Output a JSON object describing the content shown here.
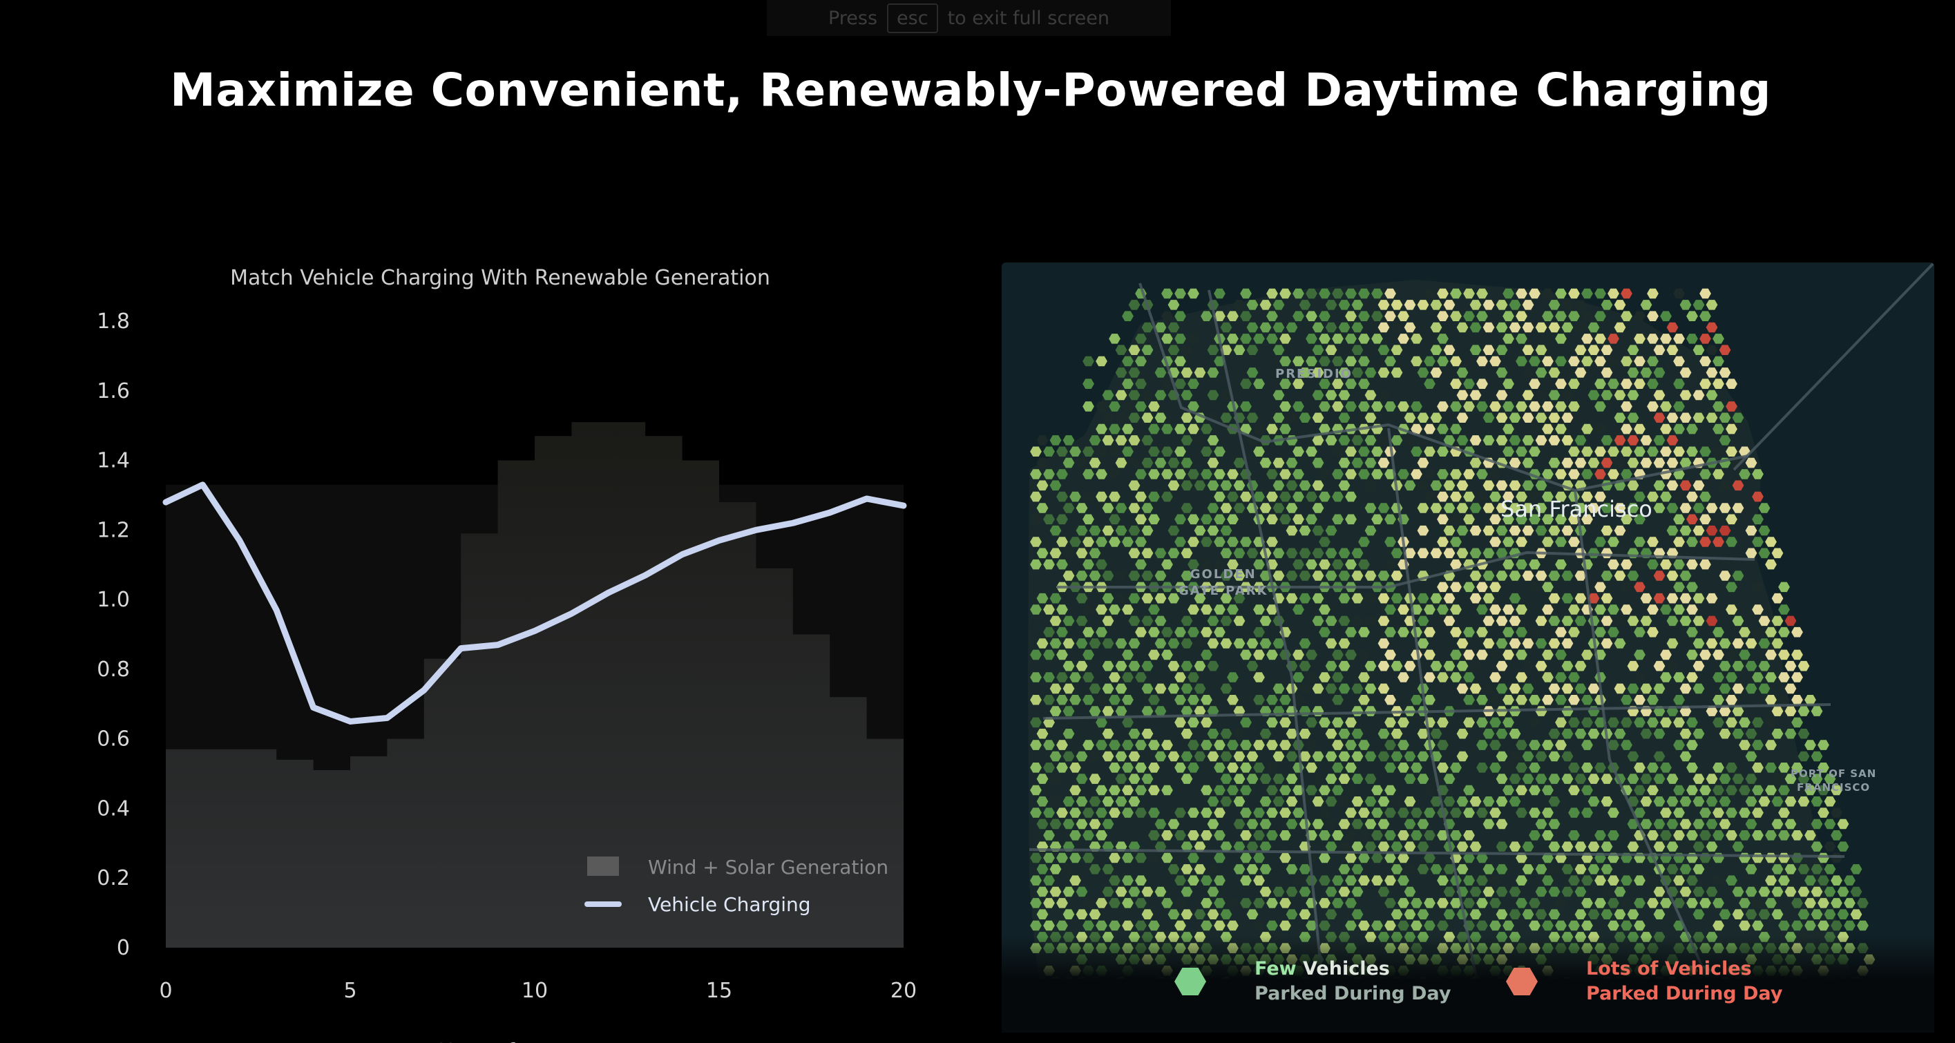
{
  "fullscreen_hint": {
    "press": "Press",
    "key": "esc",
    "suffix": "to exit full screen"
  },
  "slide": {
    "title": "Maximize Convenient, Renewably-Powered Daytime Charging"
  },
  "chart_data": {
    "type": "area",
    "title": "Match Vehicle Charging With Renewable Generation",
    "xlabel": "Hour of Day",
    "ylabel": "",
    "xlim": [
      0,
      20
    ],
    "ylim": [
      0,
      1.8
    ],
    "xticks": [
      0,
      5,
      10,
      15,
      20
    ],
    "yticks": [
      0,
      0.2,
      0.4,
      0.6,
      0.8,
      1.0,
      1.2,
      1.4,
      1.6,
      1.8
    ],
    "ytick_labels": [
      "0",
      "0.2",
      "0.4",
      "0.6",
      "0.8",
      "1.0",
      "1.2",
      "1.4",
      "1.6",
      "1.8"
    ],
    "legend_position": "bottom-right",
    "grid": false,
    "series": [
      {
        "name": "Wind + Solar Generation",
        "style": "step-area",
        "color": "#3a3a3a",
        "x": [
          0,
          1,
          2,
          3,
          4,
          5,
          6,
          7,
          8,
          9,
          10,
          11,
          12,
          13,
          14,
          15,
          16,
          17,
          18,
          19,
          20
        ],
        "values": [
          0.57,
          0.57,
          0.57,
          0.54,
          0.51,
          0.55,
          0.6,
          0.83,
          1.19,
          1.4,
          1.47,
          1.51,
          1.51,
          1.47,
          1.4,
          1.28,
          1.09,
          0.9,
          0.72,
          0.6,
          0.57
        ]
      },
      {
        "name": "Vehicle Charging",
        "style": "line",
        "color": "#c8d4f0",
        "x": [
          0,
          1,
          2,
          3,
          4,
          5,
          6,
          7,
          8,
          9,
          10,
          11,
          12,
          13,
          14,
          15,
          16,
          17,
          18,
          19,
          20
        ],
        "values": [
          1.28,
          1.33,
          1.17,
          0.97,
          0.69,
          0.65,
          0.66,
          0.74,
          0.86,
          0.87,
          0.91,
          0.96,
          1.02,
          1.07,
          1.13,
          1.17,
          1.2,
          1.22,
          1.25,
          1.29,
          1.27
        ]
      }
    ]
  },
  "map": {
    "city_label": "San Francisco",
    "areas": {
      "presidio": "PRESIDIO",
      "golden_gate_1": "GOLDEN",
      "golden_gate_2": "GATE PARK",
      "port_1": "PORT OF SAN",
      "port_2": "FRANCISCO"
    },
    "colors": {
      "few": "#7ecf8a",
      "mid": "#c9d87a",
      "lots": "#e57660",
      "dark": "#0f1a22"
    },
    "legend": {
      "few": {
        "strong": "Few",
        "rest": " Vehicles",
        "line2": "Parked During Day",
        "color": "#9ee6a6"
      },
      "lots": {
        "strong": "Lots",
        "rest": " of Vehicles",
        "line2": "Parked During Day",
        "color": "#ef6a5a"
      }
    }
  }
}
